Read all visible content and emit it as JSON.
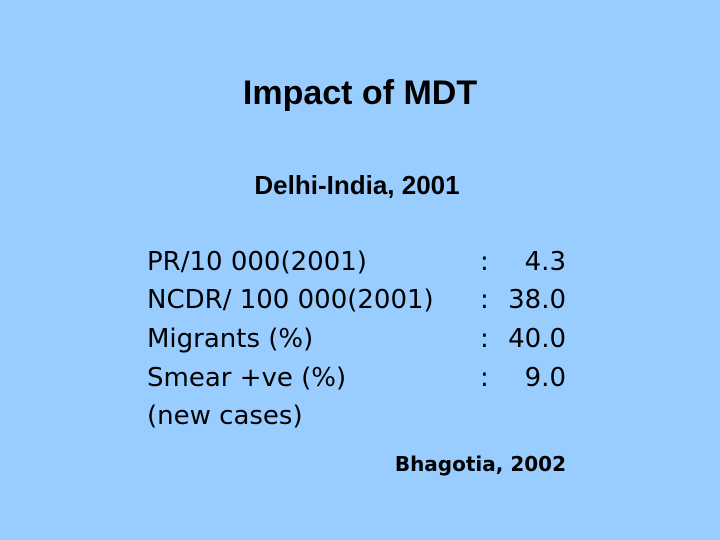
{
  "title": "Impact of MDT",
  "subtitle": "Delhi-India, 2001",
  "rows": [
    {
      "label": "PR/10 000(2001)",
      "colon": ":",
      "value": "4.3"
    },
    {
      "label": "NCDR/ 100 000(2001)",
      "colon": ":",
      "value": "38.0"
    },
    {
      "label": "Migrants (%)",
      "colon": ":",
      "value": "40.0"
    },
    {
      "label": "Smear +ve (%)",
      "colon": ":",
      "value": "9.0",
      "sublabel": "(new cases)"
    }
  ],
  "source": "Bhagotia, 2002"
}
